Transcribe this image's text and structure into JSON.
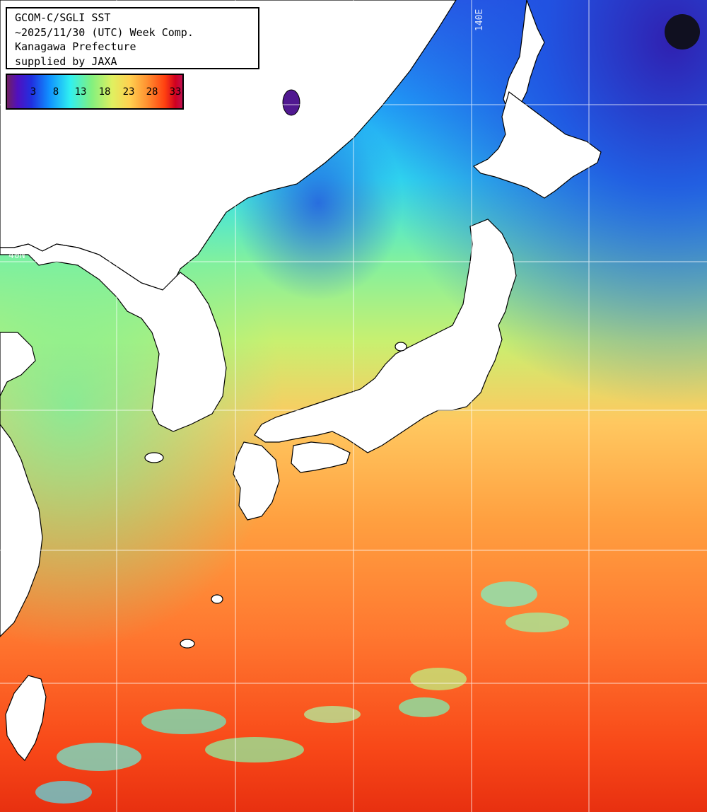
{
  "header": {
    "line1": "GCOM-C/SGLI SST",
    "line2": "~2025/11/30 (UTC) Week Comp.",
    "line3": "Kanagawa Prefecture",
    "line4": "supplied by JAXA"
  },
  "legend": {
    "labels": [
      "3",
      "8",
      "13",
      "18",
      "23",
      "28",
      "33"
    ]
  },
  "grid_labels": {
    "latitude": "40N",
    "longitude": "140E"
  },
  "colors": {
    "land": "#ffffff",
    "cold": "#2050e0",
    "cool": "#30e0f0",
    "mild": "#a0f070",
    "warm": "#ffb048",
    "hot": "#f04818",
    "grid": "#ffffff",
    "coast": "#000000"
  }
}
